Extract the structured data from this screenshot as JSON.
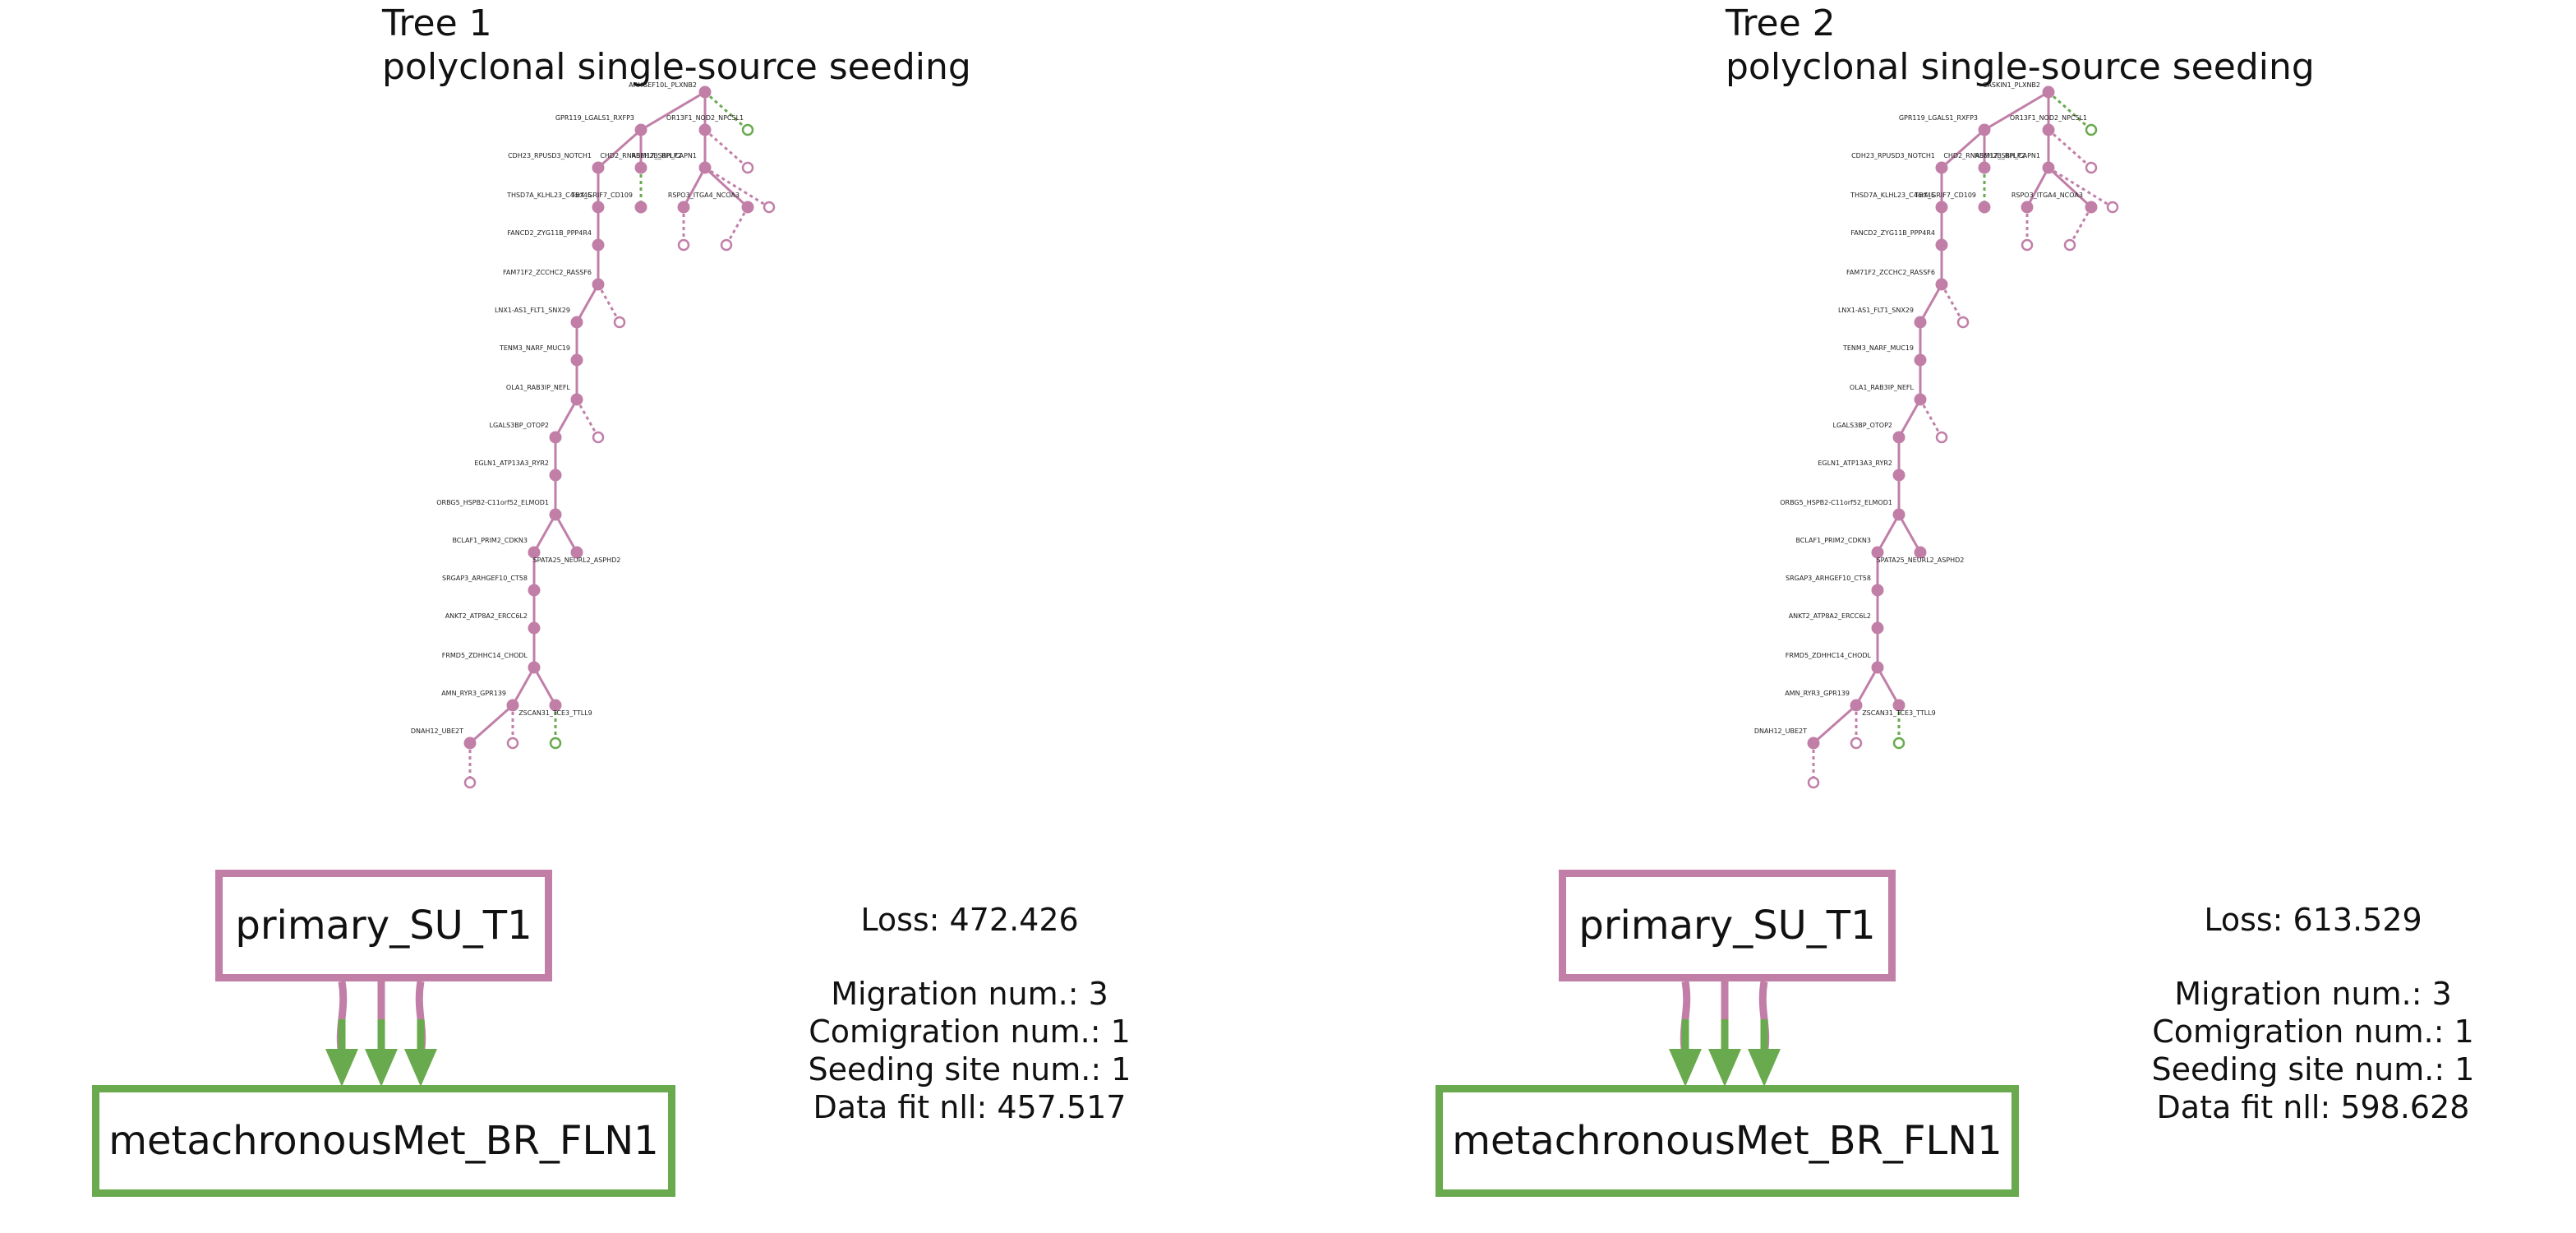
{
  "colors": {
    "primary": "#c17fa8",
    "met": "#6aaa4f",
    "text": "#111111"
  },
  "panels": [
    {
      "title": "Tree 1",
      "subtitle": "polyclonal single-source seeding",
      "primary_site": "primary_SU_T1",
      "met_site": "metachronousMet_BR_FLN1",
      "migration_edges": 3,
      "loss": "Loss: 472.426",
      "migration_num": "Migration num.: 3",
      "comigration_num": "Comigration num.: 1",
      "seeding_site_num": "Seeding site num.: 1",
      "data_fit": "Data fit nll: 457.517",
      "root_label": "ARHGEF10L_PLXNB2"
    },
    {
      "title": "Tree 2",
      "subtitle": "polyclonal single-source seeding",
      "primary_site": "primary_SU_T1",
      "met_site": "metachronousMet_BR_FLN1",
      "migration_edges": 3,
      "loss": "Loss: 613.529",
      "migration_num": "Migration num.: 3",
      "comigration_num": "Comigration num.: 1",
      "seeding_site_num": "Seeding site num.: 1",
      "data_fit": "Data fit nll: 598.628",
      "root_label": "CASKIN1_PLXNB2"
    }
  ],
  "tree": {
    "nodes": [
      {
        "id": "r",
        "label": ""
      },
      {
        "id": "a",
        "label": "GPR119_LGALS1_RXFP3"
      },
      {
        "id": "b",
        "label": "CDH23_RPUSD3_NOTCH1"
      },
      {
        "id": "c",
        "label": "THSD7A_KLHL23_C4orf45"
      },
      {
        "id": "d",
        "label": "FANCD2_ZYG11B_PPP4R4"
      },
      {
        "id": "e",
        "label": "FAM71F2_ZCCHC2_RASSF6"
      },
      {
        "id": "f",
        "label": "LNX1-AS1_FLT1_SNX29"
      },
      {
        "id": "g",
        "label": "TENM3_NARF_MUC19"
      },
      {
        "id": "h",
        "label": "OLA1_RAB3IP_NEFL"
      },
      {
        "id": "i",
        "label": "LGALS3BP_OTOP2"
      },
      {
        "id": "j",
        "label": "EGLN1_ATP13A3_RYR2"
      },
      {
        "id": "k",
        "label": "ORBG5_HSPB2-C11orf52_ELMOD1"
      },
      {
        "id": "l",
        "label": "BCLAF1_PRIM2_CDKN3"
      },
      {
        "id": "m",
        "label": "SPATA25_NEURL2_ASPHD2"
      },
      {
        "id": "n",
        "label": "SRGAP3_ARHGEF10_CT58"
      },
      {
        "id": "o",
        "label": "ANKT2_ATP8A2_ERCC6L2"
      },
      {
        "id": "p",
        "label": "FRMD5_ZDHHC14_CHODL"
      },
      {
        "id": "q",
        "label": "AMN_RYR3_GPR139"
      },
      {
        "id": "s",
        "label": "ZSCAN31_TCE3_TTLL9"
      },
      {
        "id": "t",
        "label": "DNAH12_UBE2T"
      },
      {
        "id": "u",
        "label": "OR13F1_NOD2_NPC5L1"
      },
      {
        "id": "v",
        "label": "CHD2_RNASEH2B_RPLP2"
      },
      {
        "id": "w",
        "label": "TBX_GRIF7_CD109"
      },
      {
        "id": "x",
        "label": "RSPO3_ITGA4_NCOA3"
      },
      {
        "id": "y",
        "label": "RBM17_SBH_CAPN1"
      }
    ]
  }
}
